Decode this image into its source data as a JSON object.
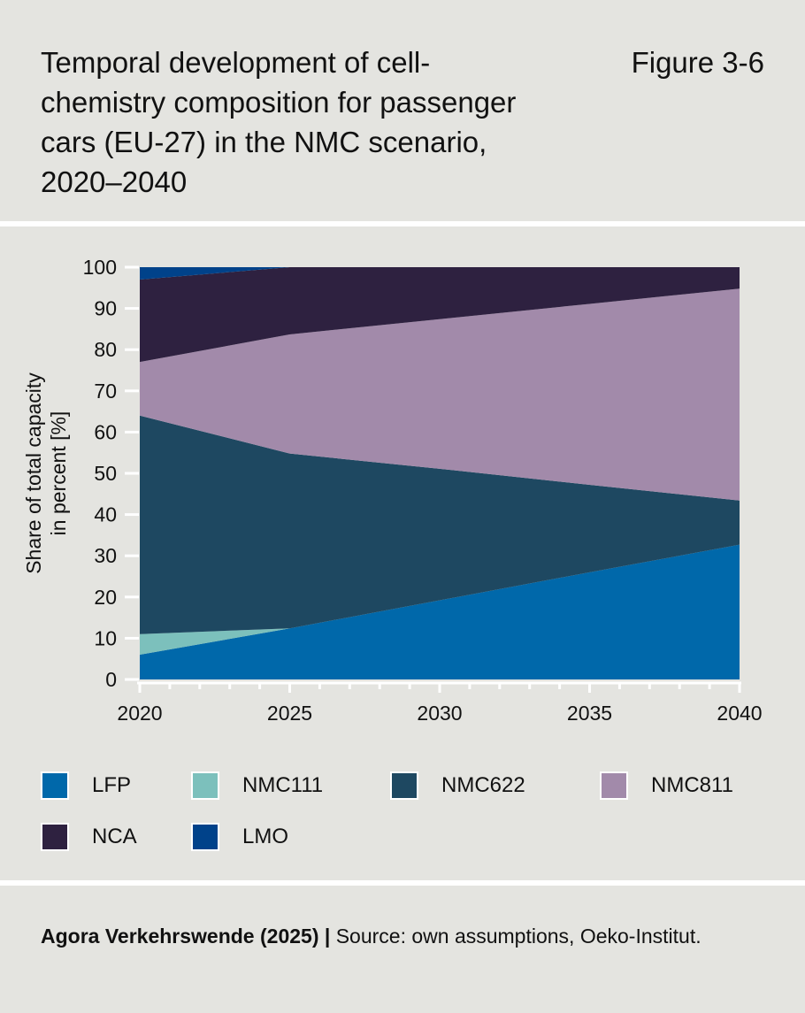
{
  "header": {
    "title": "Temporal development of cell-chemistry composition for passenger cars (EU-27) in the NMC scenario, 2020–2040",
    "figure_label": "Figure 3-6"
  },
  "footer": {
    "publisher": "Agora Verkehrswende (2025)",
    "divider": " | ",
    "source": "Source: own assumptions, Oeko-Institut."
  },
  "chart_data": {
    "type": "area",
    "stacked": true,
    "title": "",
    "xlabel": "",
    "ylabel": "Share of total capacity in percent [%]",
    "x": [
      2020,
      2025,
      2030,
      2035,
      2040
    ],
    "xticks": [
      "2020",
      "2025",
      "2030",
      "2035",
      "2040"
    ],
    "yticks": [
      "0",
      "10",
      "20",
      "30",
      "40",
      "50",
      "60",
      "70",
      "80",
      "90",
      "100"
    ],
    "xlim": [
      2020,
      2040
    ],
    "ylim": [
      0,
      100
    ],
    "grid": false,
    "legend_placement": "bottom",
    "series": [
      {
        "name": "LFP",
        "color": "#0068aa",
        "values": [
          6,
          12.4,
          19.2,
          26.0,
          32.7
        ]
      },
      {
        "name": "NMC111",
        "color": "#7cc0bc",
        "values": [
          5,
          0,
          0,
          0,
          0
        ]
      },
      {
        "name": "NMC622",
        "color": "#1e4861",
        "values": [
          53,
          42.4,
          31.9,
          21.2,
          10.7
        ]
      },
      {
        "name": "NMC811",
        "color": "#a28aaa",
        "values": [
          13,
          28.9,
          36.3,
          43.9,
          51.4
        ]
      },
      {
        "name": "NCA",
        "color": "#2e2140",
        "values": [
          20,
          16.3,
          12.6,
          8.9,
          5.2
        ]
      },
      {
        "name": "LMO",
        "color": "#00428a",
        "values": [
          3,
          0,
          0,
          0,
          0
        ]
      }
    ]
  }
}
